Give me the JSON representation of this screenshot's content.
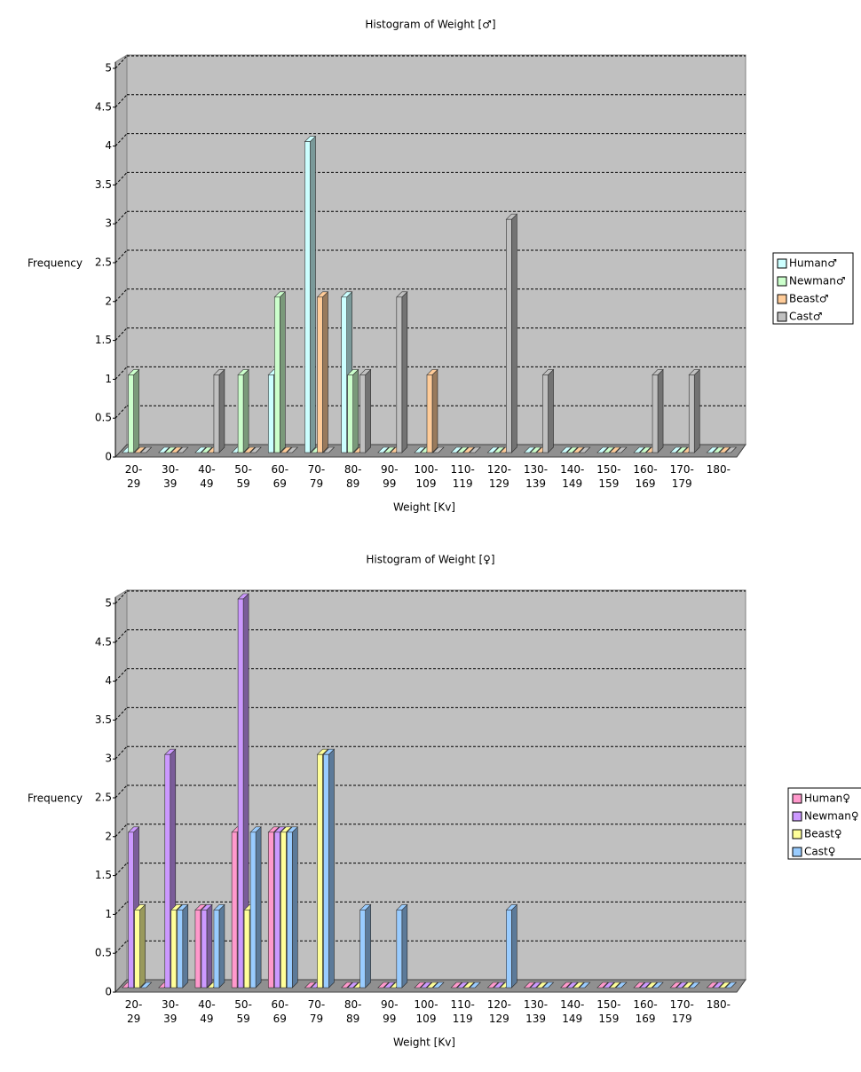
{
  "chart_data": [
    {
      "type": "bar",
      "title": "Histogram of Weight [♂]",
      "x_label": "Weight [Kv]",
      "y_label": "Frequency",
      "categories": [
        "20-\n29",
        "30-\n39",
        "40-\n49",
        "50-\n59",
        "60-\n69",
        "70-\n79",
        "80-\n89",
        "90-\n99",
        "100-\n109",
        "110-\n119",
        "120-\n129",
        "130-\n139",
        "140-\n149",
        "150-\n159",
        "160-\n169",
        "170-\n179",
        "180-"
      ],
      "series": [
        {
          "name": "Human♂",
          "color": "#ccffff",
          "values": [
            0,
            0,
            0,
            0,
            1,
            4,
            2,
            0,
            0,
            0,
            0,
            0,
            0,
            0,
            0,
            0,
            0
          ]
        },
        {
          "name": "Newman♂",
          "color": "#ccffcc",
          "values": [
            1,
            0,
            0,
            1,
            2,
            0,
            1,
            0,
            0,
            0,
            0,
            0,
            0,
            0,
            0,
            0,
            0
          ]
        },
        {
          "name": "Beast♂",
          "color": "#ffcc99",
          "values": [
            0,
            0,
            0,
            0,
            0,
            2,
            0,
            0,
            1,
            0,
            0,
            0,
            0,
            0,
            0,
            0,
            0
          ]
        },
        {
          "name": "Cast♂",
          "color": "#c0c0c0",
          "values": [
            0,
            0,
            1,
            0,
            0,
            0,
            1,
            2,
            0,
            0,
            3,
            1,
            0,
            0,
            1,
            1,
            0
          ]
        }
      ],
      "ylim": [
        0,
        5
      ],
      "yticks": [
        0,
        0.5,
        1,
        1.5,
        2,
        2.5,
        3,
        3.5,
        4,
        4.5,
        5
      ],
      "grid": true,
      "legend": "right"
    },
    {
      "type": "bar",
      "title": "Histogram of Weight [♀]",
      "x_label": "Weight [Kv]",
      "y_label": "Frequency",
      "categories": [
        "20-\n29",
        "30-\n39",
        "40-\n49",
        "50-\n59",
        "60-\n69",
        "70-\n79",
        "80-\n89",
        "90-\n99",
        "100-\n109",
        "110-\n119",
        "120-\n129",
        "130-\n139",
        "140-\n149",
        "150-\n159",
        "160-\n169",
        "170-\n179",
        "180-"
      ],
      "series": [
        {
          "name": "Human♀",
          "color": "#ff99cc",
          "values": [
            0,
            0,
            1,
            2,
            2,
            0,
            0,
            0,
            0,
            0,
            0,
            0,
            0,
            0,
            0,
            0,
            0
          ]
        },
        {
          "name": "Newman♀",
          "color": "#cc99ff",
          "values": [
            2,
            3,
            1,
            5,
            2,
            0,
            0,
            0,
            0,
            0,
            0,
            0,
            0,
            0,
            0,
            0,
            0
          ]
        },
        {
          "name": "Beast♀",
          "color": "#ffff99",
          "values": [
            1,
            1,
            0,
            1,
            2,
            3,
            0,
            0,
            0,
            0,
            0,
            0,
            0,
            0,
            0,
            0,
            0
          ]
        },
        {
          "name": "Cast♀",
          "color": "#99ccff",
          "values": [
            0,
            1,
            1,
            2,
            2,
            3,
            1,
            1,
            0,
            0,
            1,
            0,
            0,
            0,
            0,
            0,
            0
          ]
        }
      ],
      "ylim": [
        0,
        5
      ],
      "yticks": [
        0,
        0.5,
        1,
        1.5,
        2,
        2.5,
        3,
        3.5,
        4,
        4.5,
        5
      ],
      "grid": true,
      "legend": "right"
    }
  ]
}
